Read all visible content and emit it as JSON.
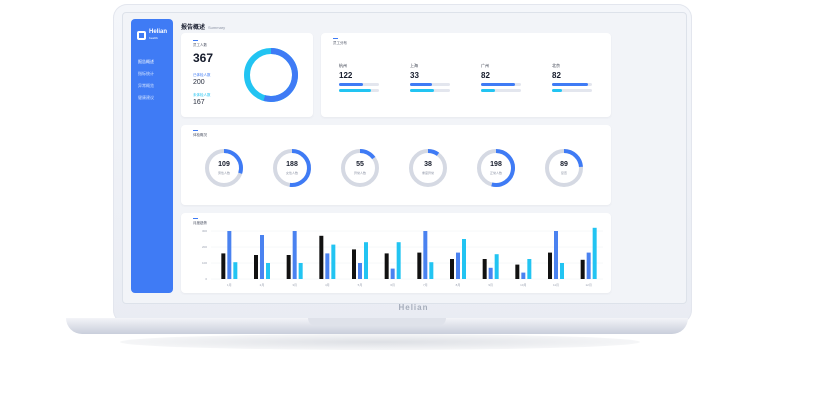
{
  "brand": "Helian",
  "sidebar": {
    "logo": "Helian",
    "logo_sub": "health",
    "items": [
      {
        "label": "报告概述",
        "active": true
      },
      {
        "label": "指标统计",
        "active": false
      },
      {
        "label": "异常概览",
        "active": false
      },
      {
        "label": "健康建议",
        "active": false
      }
    ]
  },
  "header": {
    "title": "报告概述",
    "subtitle": "Summary"
  },
  "summary": {
    "total_label": "员工人数",
    "total": "367",
    "checked_label": "已体检人数",
    "checked": "200",
    "unchecked_label": "未体检人数",
    "unchecked": "167",
    "donut_fraction": 0.545,
    "colors": {
      "primary": "#3f7bf5",
      "secondary": "#22c4f2"
    }
  },
  "cities": {
    "title": "员工分布",
    "items": [
      {
        "name": "杭州",
        "value": "122",
        "bar1": 0.6,
        "bar2": 0.8
      },
      {
        "name": "上海",
        "value": "33",
        "bar1": 0.55,
        "bar2": 0.6
      },
      {
        "name": "广州",
        "value": "82",
        "bar1": 0.85,
        "bar2": 0.35
      },
      {
        "name": "北京",
        "value": "82",
        "bar1": 0.9,
        "bar2": 0.25
      }
    ]
  },
  "rings": {
    "title": "体检概况",
    "items": [
      {
        "value": "109",
        "label": "男性人数",
        "fraction": 0.3
      },
      {
        "value": "188",
        "label": "女性人数",
        "fraction": 0.52
      },
      {
        "value": "55",
        "label": "异常人数",
        "fraction": 0.15
      },
      {
        "value": "38",
        "label": "重度异常",
        "fraction": 0.1
      },
      {
        "value": "198",
        "label": "正常人数",
        "fraction": 0.54
      },
      {
        "value": "89",
        "label": "复查",
        "fraction": 0.24
      }
    ]
  },
  "chart_data": {
    "type": "bar",
    "title": "月度趋势",
    "categories": [
      "1月",
      "2月",
      "3月",
      "4月",
      "5月",
      "6月",
      "7月",
      "8月",
      "9月",
      "10月",
      "11月",
      "12月"
    ],
    "y_ticks": [
      "0",
      "100",
      "200",
      "300"
    ],
    "ylim": [
      0,
      300
    ],
    "series": [
      {
        "color": "#111111",
        "values": [
          160,
          150,
          150,
          270,
          185,
          160,
          165,
          125,
          125,
          90,
          165,
          120
        ]
      },
      {
        "color": "#4a82f0",
        "values": [
          300,
          275,
          300,
          160,
          100,
          65,
          300,
          165,
          70,
          40,
          300,
          165
        ]
      },
      {
        "color": "#22c4f2",
        "values": [
          105,
          100,
          100,
          215,
          230,
          230,
          105,
          250,
          155,
          125,
          100,
          320
        ]
      }
    ],
    "grid": true,
    "legend": "none"
  }
}
